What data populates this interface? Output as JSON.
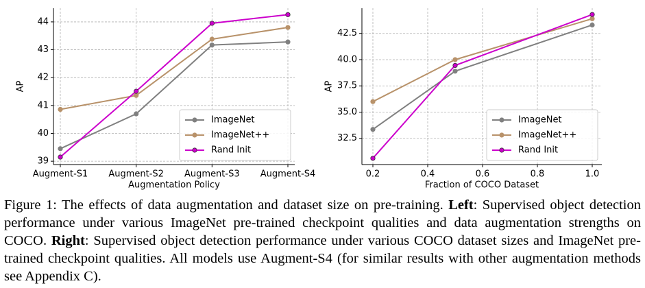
{
  "chart_data": [
    {
      "type": "line",
      "x_label": "Augmentation Policy",
      "y_label": "AP",
      "categories": [
        "Augment-S1",
        "Augment-S2",
        "Augment-S3",
        "Augment-S4"
      ],
      "series": [
        {
          "name": "ImageNet",
          "color": "#808080",
          "values": [
            39.45,
            40.7,
            43.17,
            43.28
          ]
        },
        {
          "name": "ImageNet++",
          "color": "#b8926a",
          "values": [
            40.86,
            41.36,
            43.38,
            43.8
          ]
        },
        {
          "name": "Rand Init",
          "color": "#cc00cc",
          "values": [
            39.15,
            41.51,
            43.95,
            44.26
          ]
        }
      ],
      "ylim": [
        38.88,
        44.49
      ],
      "yticks": [
        39,
        40,
        41,
        42,
        43,
        44
      ],
      "grid": true,
      "legend": "lower right"
    },
    {
      "type": "line",
      "x_label": "Fraction of COCO Dataset",
      "y_label": "AP",
      "x": [
        0.2,
        0.5,
        1.0
      ],
      "series": [
        {
          "name": "ImageNet",
          "color": "#808080",
          "values": [
            33.35,
            38.9,
            43.3
          ]
        },
        {
          "name": "ImageNet++",
          "color": "#b8926a",
          "values": [
            36.0,
            40.0,
            43.9
          ]
        },
        {
          "name": "Rand Init",
          "color": "#cc00cc",
          "values": [
            30.6,
            39.45,
            44.3
          ]
        }
      ],
      "xlim": [
        0.16,
        1.035
      ],
      "xticks": [
        0.2,
        0.4,
        0.6,
        0.8,
        {
          "value": 1.0,
          "label": "1.0"
        }
      ],
      "ylim": [
        30.0,
        44.9
      ],
      "yticks": [
        32.5,
        {
          "value": 35,
          "label": "35.0"
        },
        37.5,
        {
          "value": 40,
          "label": "40.0"
        },
        42.5
      ],
      "grid": true,
      "legend": "lower right"
    }
  ],
  "caption": [
    "Figure 1: The effects of data augmentation and dataset size on pre-training. ",
    "Left",
    ": Supervised object detection performance under various ImageNet pre-trained checkpoint qualities and data augmentation strengths on COCO. ",
    "Right",
    ": Supervised object detection performance under various COCO dataset sizes and ImageNet pre-trained checkpoint qualities. All models use Augment-S4 (for similar results with other augmentation methods see Appendix C)."
  ]
}
